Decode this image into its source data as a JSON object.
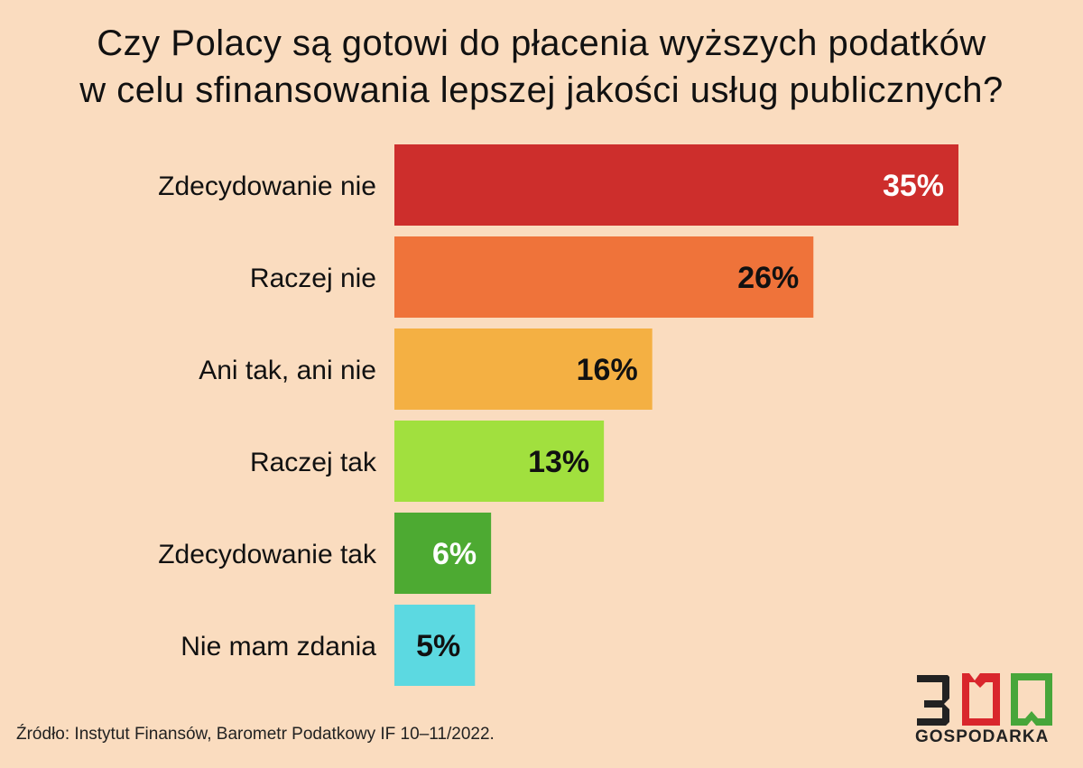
{
  "title_lines": [
    "Czy Polacy są gotowi do płacenia wyższych podatków",
    "w celu sfinansowania lepszej jakości usług publicznych?"
  ],
  "chart_data": {
    "type": "bar",
    "orientation": "horizontal",
    "categories": [
      "Zdecydowanie nie",
      "Raczej nie",
      "Ani tak, ani nie",
      "Raczej tak",
      "Zdecydowanie tak",
      "Nie mam zdania"
    ],
    "values": [
      35,
      26,
      16,
      13,
      6,
      5
    ],
    "value_labels": [
      "35%",
      "26%",
      "16%",
      "13%",
      "6%",
      "5%"
    ],
    "bar_colors": [
      "#CD2E2C",
      "#EF733A",
      "#F4B043",
      "#A1E03E",
      "#4DAA32",
      "#5CD9E1"
    ],
    "label_colors": [
      "#FFFFFF",
      "#111111",
      "#111111",
      "#111111",
      "#FFFFFF",
      "#111111"
    ],
    "unit": "%",
    "xlim": [
      0,
      35
    ],
    "grid": false,
    "legend": "none"
  },
  "source": "Źródło: Instytut Finansów, Barometr Podatkowy IF 10–11/2022.",
  "logo": {
    "number": "300",
    "text": "GOSPODARKA",
    "colors": {
      "dark": "#222222",
      "red": "#D9262C",
      "green": "#47A63A"
    }
  }
}
